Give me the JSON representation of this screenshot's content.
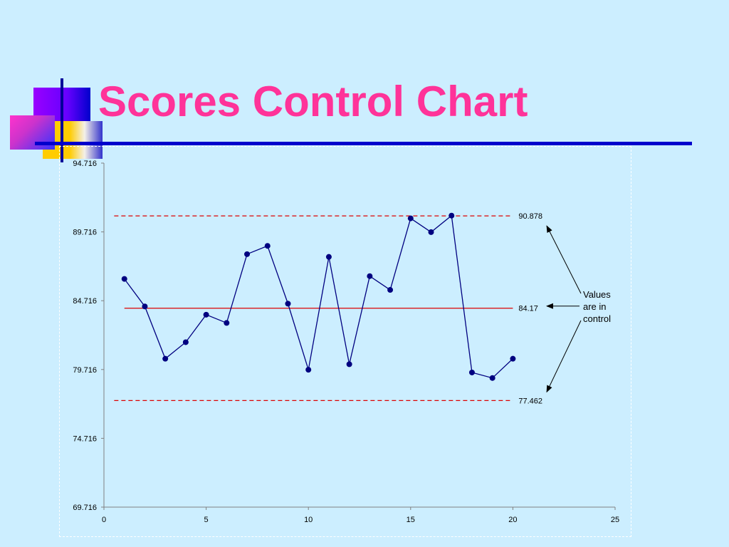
{
  "slide": {
    "title": "Scores Control Chart"
  },
  "chart_data": {
    "type": "line",
    "title": "",
    "xlabel": "",
    "ylabel": "",
    "xlim": [
      0,
      25
    ],
    "ylim": [
      69.716,
      94.716
    ],
    "x_ticks": [
      0,
      5,
      10,
      15,
      20,
      25
    ],
    "y_ticks": [
      69.716,
      74.716,
      79.716,
      84.716,
      89.716,
      94.716
    ],
    "x_tick_labels": [
      "0",
      "5",
      "10",
      "15",
      "20",
      "25"
    ],
    "y_tick_labels": [
      "69.716",
      "74.716",
      "79.716",
      "84.716",
      "89.716",
      "94.716"
    ],
    "grid": false,
    "series": [
      {
        "color": "#000080",
        "x": [
          1,
          2,
          3,
          4,
          5,
          6,
          7,
          8,
          9,
          10,
          11,
          12,
          13,
          14,
          15,
          16,
          17,
          18,
          19,
          20
        ],
        "values": [
          86.3,
          84.3,
          80.5,
          81.7,
          83.7,
          83.1,
          88.1,
          88.7,
          84.5,
          79.7,
          87.9,
          80.1,
          86.5,
          85.5,
          90.7,
          89.7,
          90.9,
          79.5,
          79.1,
          80.5
        ]
      }
    ],
    "control_lines": [
      {
        "label": "90.878",
        "value": 90.878,
        "x_range": [
          0.5,
          20
        ],
        "style": "dashed",
        "color": "#dd0000"
      },
      {
        "label": "84.17",
        "value": 84.17,
        "x_range": [
          1,
          20
        ],
        "style": "solid",
        "color": "#dd0000"
      },
      {
        "label": "77.462",
        "value": 77.462,
        "x_range": [
          0.5,
          20
        ],
        "style": "dashed",
        "color": "#dd0000"
      }
    ],
    "annotation": {
      "lines": [
        "Values",
        "are in",
        "control"
      ]
    }
  }
}
